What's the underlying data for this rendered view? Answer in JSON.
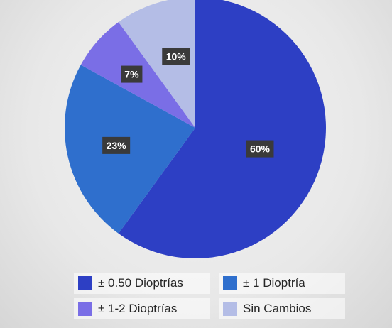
{
  "chart_data": {
    "type": "pie",
    "slices": [
      {
        "name": "± 0.50 Dioptrías",
        "value": 60,
        "label": "60%",
        "color": "#2d3fc4"
      },
      {
        "name": "± 1 Dioptría",
        "value": 23,
        "label": "23%",
        "color": "#2f6fcd"
      },
      {
        "name": "± 1-2 Dioptrías",
        "value": 7,
        "label": "7%",
        "color": "#7a6ee6"
      },
      {
        "name": "Sin Cambios",
        "value": 10,
        "label": "10%",
        "color": "#b4bde6"
      }
    ],
    "legend_position": "bottom",
    "start_angle_deg": 0,
    "direction": "clockwise"
  }
}
